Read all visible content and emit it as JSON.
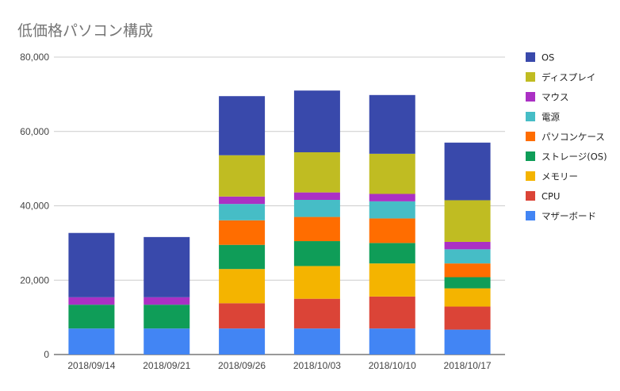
{
  "chart_data": {
    "type": "bar",
    "stacked": true,
    "title": "低価格パソコン構成",
    "xlabel": "",
    "ylabel": "",
    "ylim": [
      0,
      80000
    ],
    "yticks": [
      "0",
      "20,000",
      "40,000",
      "60,000",
      "80,000"
    ],
    "grid": true,
    "legend_position": "right",
    "categories": [
      "2018/09/14",
      "2018/09/21",
      "2018/09/26",
      "2018/10/03",
      "2018/10/10",
      "2018/10/17"
    ],
    "series": [
      {
        "name": "マザーボード",
        "color": "#4285f4",
        "values": [
          7000,
          7000,
          7000,
          7000,
          7000,
          6700
        ]
      },
      {
        "name": "CPU",
        "color": "#db4437",
        "values": [
          0,
          0,
          6800,
          8000,
          8600,
          6200
        ]
      },
      {
        "name": "メモリー",
        "color": "#f4b400",
        "values": [
          0,
          0,
          9200,
          8800,
          8900,
          4900
        ]
      },
      {
        "name": "ストレージ(OS)",
        "color": "#0f9d58",
        "values": [
          6400,
          6400,
          6500,
          6700,
          5500,
          3000
        ]
      },
      {
        "name": "パソコンケース",
        "color": "#ff6d00",
        "values": [
          0,
          0,
          6600,
          6500,
          6600,
          3700
        ]
      },
      {
        "name": "電源",
        "color": "#46bdc6",
        "values": [
          0,
          0,
          4400,
          4600,
          4600,
          3800
        ]
      },
      {
        "name": "マウス",
        "color": "#ab30c4",
        "values": [
          2000,
          2000,
          2000,
          2000,
          2000,
          2000
        ]
      },
      {
        "name": "ディスプレイ",
        "color": "#c0bc22",
        "values": [
          0,
          0,
          11100,
          10800,
          10800,
          11200
        ]
      },
      {
        "name": "OS",
        "color": "#3949ab",
        "values": [
          17300,
          16200,
          15900,
          16600,
          15800,
          15500
        ]
      }
    ]
  }
}
